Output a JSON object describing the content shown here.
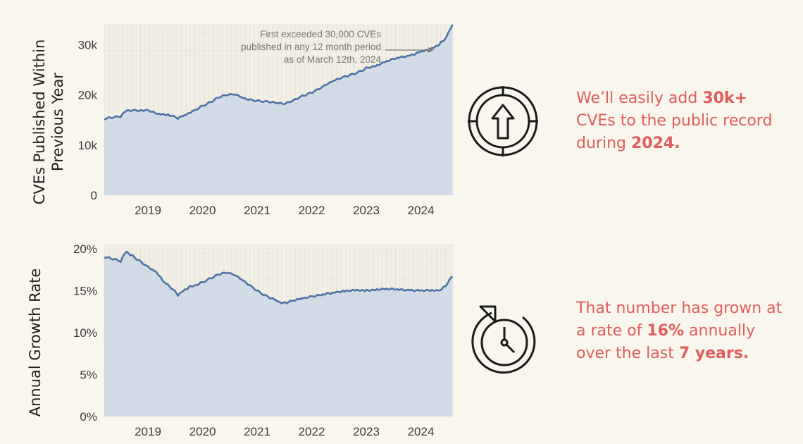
{
  "chart_data": [
    {
      "type": "area",
      "ylabel_line1": "CVEs Published Within",
      "ylabel_line2": "Previous Year",
      "x_ticks": [
        "2019",
        "2020",
        "2021",
        "2022",
        "2023",
        "2024"
      ],
      "y_ticks": [
        "0",
        "10k",
        "20k",
        "30k"
      ],
      "xlim": [
        2018.2,
        2024.6
      ],
      "ylim": [
        0,
        34000
      ],
      "grid": true,
      "annotation": [
        "First exceeded 30,000 CVEs",
        "published in any 12 month period",
        "as of March 12th, 2024"
      ],
      "series": [
        {
          "name": "CVEs published within previous year",
          "x": [
            2018.2,
            2018.35,
            2018.5,
            2018.6,
            2018.75,
            2019.0,
            2019.2,
            2019.4,
            2019.55,
            2019.7,
            2019.85,
            2020.0,
            2020.15,
            2020.3,
            2020.45,
            2020.6,
            2020.75,
            2020.9,
            2021.05,
            2021.2,
            2021.35,
            2021.5,
            2021.65,
            2021.8,
            2021.95,
            2022.1,
            2022.25,
            2022.4,
            2022.55,
            2022.7,
            2022.85,
            2023.0,
            2023.2,
            2023.4,
            2023.6,
            2023.8,
            2024.0,
            2024.1,
            2024.2,
            2024.3,
            2024.4,
            2024.47,
            2024.53,
            2024.58
          ],
          "values": [
            15200,
            15500,
            15700,
            16900,
            17000,
            16800,
            16300,
            16000,
            15400,
            16100,
            16900,
            17800,
            18600,
            19600,
            20100,
            20200,
            19400,
            19000,
            18800,
            18700,
            18500,
            18300,
            18900,
            19700,
            20300,
            21000,
            22000,
            22900,
            23500,
            24000,
            24500,
            25300,
            26000,
            26800,
            27400,
            27900,
            28600,
            28900,
            29200,
            29800,
            30700,
            31600,
            32800,
            34000
          ]
        }
      ]
    },
    {
      "type": "area",
      "ylabel": "Annual Growth Rate",
      "x_ticks": [
        "2019",
        "2020",
        "2021",
        "2022",
        "2023",
        "2024"
      ],
      "y_ticks": [
        "0%",
        "5%",
        "10%",
        "15%",
        "20%"
      ],
      "xlim": [
        2018.2,
        2024.6
      ],
      "ylim": [
        0,
        20.5
      ],
      "grid": true,
      "series": [
        {
          "name": "Annual growth rate (%)",
          "x": [
            2018.2,
            2018.35,
            2018.5,
            2018.6,
            2018.7,
            2018.85,
            2019.0,
            2019.15,
            2019.3,
            2019.45,
            2019.55,
            2019.65,
            2019.75,
            2019.85,
            2020.0,
            2020.15,
            2020.3,
            2020.45,
            2020.6,
            2020.75,
            2020.9,
            2021.05,
            2021.2,
            2021.35,
            2021.45,
            2021.55,
            2021.7,
            2021.85,
            2022.0,
            2022.2,
            2022.4,
            2022.6,
            2022.8,
            2023.0,
            2023.2,
            2023.4,
            2023.6,
            2023.8,
            2024.0,
            2024.2,
            2024.35,
            2024.45,
            2024.52,
            2024.58
          ],
          "values": [
            19.0,
            18.8,
            18.5,
            19.7,
            19.2,
            18.5,
            17.8,
            17.2,
            16.0,
            15.2,
            14.5,
            15.0,
            15.4,
            15.6,
            16.0,
            16.5,
            17.0,
            17.2,
            16.9,
            16.2,
            15.5,
            14.8,
            14.3,
            13.9,
            13.5,
            13.6,
            13.9,
            14.1,
            14.3,
            14.5,
            14.8,
            15.0,
            15.0,
            15.0,
            15.2,
            15.2,
            15.1,
            15.1,
            15.0,
            15.0,
            15.0,
            15.6,
            16.2,
            16.7
          ]
        }
      ]
    }
  ],
  "notes": {
    "first": {
      "part1": "We’ll easily add ",
      "bold1": "30k+",
      "part2": " CVEs to the public record during ",
      "bold2": "2024.",
      "part3": ""
    },
    "second": {
      "part1": "That number has grown at a rate of ",
      "bold1": "16%",
      "part2": " annually over the last ",
      "bold2": "7 years.",
      "part3": ""
    }
  },
  "icons": {
    "first": "up-arrow-circle-icon",
    "second": "clock-refresh-icon"
  },
  "colors": {
    "background": "#f8f6ed",
    "area_fill": "#ccd8e6",
    "line": "#4e74a8",
    "accent_text": "#e05d5d"
  }
}
